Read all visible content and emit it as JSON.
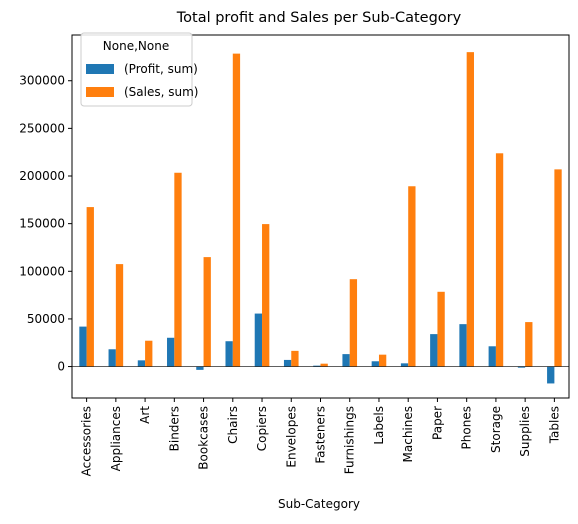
{
  "chart_data": {
    "type": "bar",
    "title": "Total profit and Sales per Sub-Category",
    "xlabel": "Sub-Category",
    "ylabel": "",
    "ylim": [
      -33000,
      348000
    ],
    "yticks": [
      0,
      50000,
      100000,
      150000,
      200000,
      250000,
      300000
    ],
    "grid": false,
    "legend": {
      "title": "None,None",
      "placement": "top-left"
    },
    "categories": [
      "Accessories",
      "Appliances",
      "Art",
      "Binders",
      "Bookcases",
      "Chairs",
      "Copiers",
      "Envelopes",
      "Fasteners",
      "Furnishings",
      "Labels",
      "Machines",
      "Paper",
      "Phones",
      "Storage",
      "Supplies",
      "Tables"
    ],
    "series": [
      {
        "name": "(Profit, sum)",
        "color": "#1f77b4",
        "values": [
          41937,
          18138,
          6528,
          30222,
          -3473,
          26590,
          55618,
          6964,
          950,
          13059,
          5546,
          3385,
          34054,
          44516,
          21279,
          -1189,
          -17725
        ]
      },
      {
        "name": "(Sales, sum)",
        "color": "#ff7f0e",
        "values": [
          167380,
          107532,
          27119,
          203413,
          114880,
          328449,
          149528,
          16476,
          3024,
          91705,
          12486,
          189239,
          78479,
          330007,
          223844,
          46674,
          206966
        ]
      }
    ]
  }
}
